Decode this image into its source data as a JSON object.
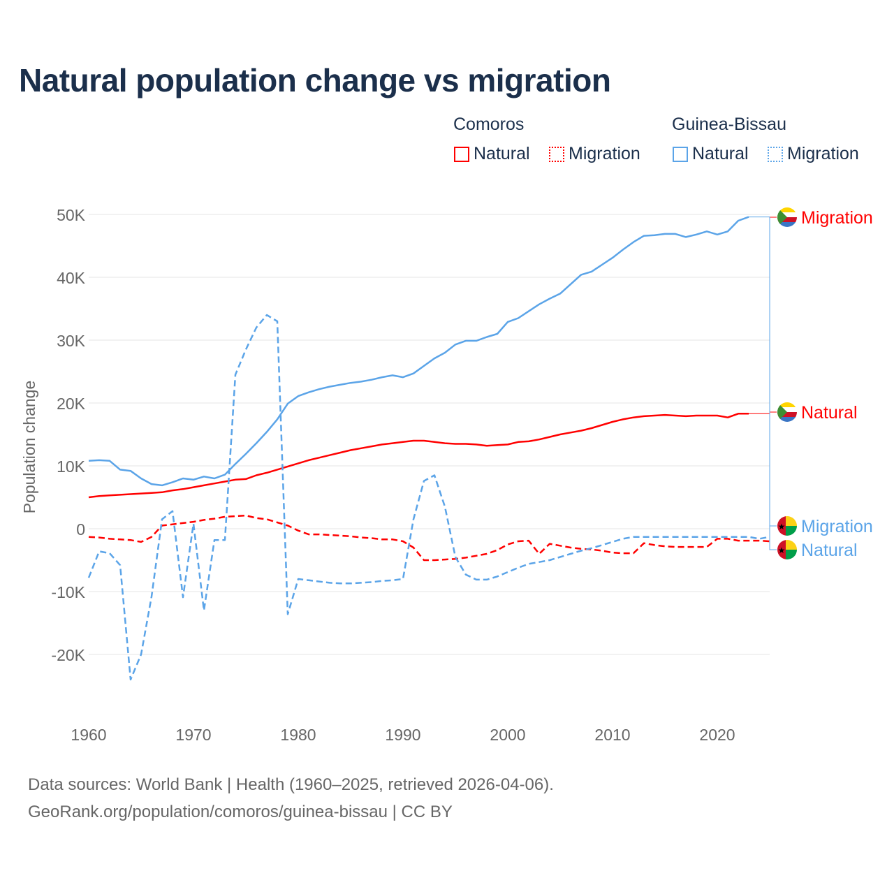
{
  "chart_data": {
    "type": "line",
    "title": "Natural population change vs migration",
    "xlabel": "",
    "ylabel": "Population change",
    "xlim": [
      1960,
      2025
    ],
    "ylim": [
      -25000,
      52000
    ],
    "x_ticks": [
      1960,
      1970,
      1980,
      1990,
      2000,
      2010,
      2020
    ],
    "x_tick_labels": [
      "1960",
      "1970",
      "1980",
      "1990",
      "2000",
      "2010",
      "2020"
    ],
    "y_ticks": [
      -20000,
      -10000,
      0,
      10000,
      20000,
      30000,
      40000,
      50000
    ],
    "y_tick_labels": [
      "-20K",
      "-10K",
      "0",
      "10K",
      "20K",
      "30K",
      "40K",
      "50K"
    ],
    "grid": true,
    "legend_placement": "top-right",
    "legend_groups": [
      "Comoros",
      "Guinea-Bissau"
    ],
    "start_year": 1960,
    "series": [
      {
        "name": "Natural",
        "country": "Comoros",
        "color": "#ff0000",
        "dash": "solid",
        "end_label": "Natural",
        "values": [
          5000,
          5200,
          5300,
          5400,
          5500,
          5600,
          5700,
          5800,
          6100,
          6300,
          6600,
          6900,
          7200,
          7500,
          7800,
          7900,
          8500,
          8900,
          9400,
          9900,
          10400,
          10900,
          11300,
          11700,
          12100,
          12500,
          12800,
          13100,
          13400,
          13600,
          13800,
          14000,
          14000,
          13800,
          13600,
          13500,
          13500,
          13400,
          13200,
          13300,
          13400,
          13800,
          13900,
          14200,
          14600,
          15000,
          15300,
          15600,
          16000,
          16500,
          17000,
          17400,
          17700,
          17900,
          18000,
          18100,
          18000,
          17900,
          18000,
          18000,
          18000,
          17700,
          18300,
          18300
        ]
      },
      {
        "name": "Migration",
        "country": "Comoros",
        "color": "#ff0000",
        "dash": "dashed",
        "end_label": "Migration",
        "values": [
          -1300,
          -1400,
          -1600,
          -1700,
          -1800,
          -2100,
          -1300,
          500,
          700,
          900,
          1100,
          1400,
          1600,
          1900,
          2000,
          2100,
          1700,
          1500,
          1000,
          500,
          -300,
          -900,
          -900,
          -1000,
          -1100,
          -1200,
          -1400,
          -1500,
          -1700,
          -1700,
          -2000,
          -3000,
          -5000,
          -5000,
          -4900,
          -4800,
          -4600,
          -4300,
          -4000,
          -3400,
          -2500,
          -2000,
          -1900,
          -4000,
          -2400,
          -2700,
          -3000,
          -3200,
          -3300,
          -3500,
          -3800,
          -3900,
          -3900,
          -2300,
          -2600,
          -2800,
          -2900,
          -2900,
          -2900,
          -2900,
          -1600,
          -1600,
          -1900,
          -1900,
          -1900,
          -2000
        ]
      },
      {
        "name": "Natural",
        "country": "Guinea-Bissau",
        "color": "#5ba4e8",
        "dash": "solid",
        "end_label": "Natural",
        "values": [
          10800,
          10900,
          10800,
          9400,
          9200,
          8000,
          7100,
          6900,
          7400,
          8000,
          7800,
          8300,
          8000,
          8600,
          10300,
          11900,
          13600,
          15400,
          17400,
          19900,
          21100,
          21700,
          22200,
          22600,
          22900,
          23200,
          23400,
          23700,
          24100,
          24400,
          24100,
          24700,
          25900,
          27100,
          28000,
          29300,
          29900,
          29900,
          30500,
          31000,
          32900,
          33500,
          34600,
          35700,
          36600,
          37400,
          38900,
          40400,
          40900,
          42000,
          43100,
          44400,
          45600,
          46600,
          46700,
          46900,
          46900,
          46400,
          46800,
          47300,
          46800,
          47300,
          49000,
          49600
        ]
      },
      {
        "name": "Migration",
        "country": "Guinea-Bissau",
        "color": "#5ba4e8",
        "dash": "dashed",
        "end_label": "Migration",
        "values": [
          -7800,
          -3600,
          -3900,
          -5800,
          -24000,
          -20000,
          -10800,
          1500,
          2800,
          -10900,
          800,
          -13000,
          -1800,
          -1800,
          24500,
          28500,
          32000,
          34000,
          33000,
          -13600,
          -8000,
          -8200,
          -8400,
          -8600,
          -8700,
          -8700,
          -8600,
          -8500,
          -8300,
          -8200,
          -8000,
          1500,
          7600,
          8500,
          3500,
          -4500,
          -7300,
          -8100,
          -8100,
          -7600,
          -6900,
          -6200,
          -5600,
          -5300,
          -5000,
          -4500,
          -4000,
          -3500,
          -3100,
          -2600,
          -2100,
          -1600,
          -1300,
          -1300,
          -1300,
          -1300,
          -1300,
          -1300,
          -1300,
          -1300,
          -1300,
          -1300,
          -1300,
          -1300,
          -1600,
          -1300
        ]
      }
    ]
  },
  "legend": {
    "comoros": "Comoros",
    "guinea_bissau": "Guinea-Bissau",
    "natural": "Natural",
    "migration": "Migration"
  },
  "footer": {
    "line1": "Data sources: World Bank | Health (1960–2025, retrieved 2026-04-06).",
    "line2": "GeoRank.org/population/comoros/guinea-bissau | CC BY"
  }
}
